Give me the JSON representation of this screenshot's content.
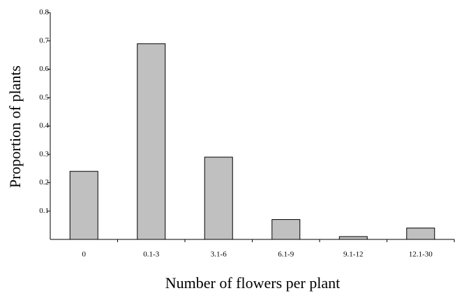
{
  "chart_data": {
    "type": "bar",
    "x_label": "Number of flowers per plant",
    "y_label": "Proportion of plants",
    "categories": [
      "0",
      "0.1-3",
      "3.1-6",
      "6.1-9",
      "9.1-12",
      "12.1-30"
    ],
    "values": [
      0.24,
      0.69,
      0.29,
      0.07,
      0.01,
      0.04
    ],
    "color": "#c0c0c0",
    "ylim": [
      0,
      0.8
    ],
    "yticks": [
      0.1,
      0.2,
      0.3,
      0.4,
      0.5,
      0.6,
      0.7,
      0.8
    ],
    "grid": false
  }
}
